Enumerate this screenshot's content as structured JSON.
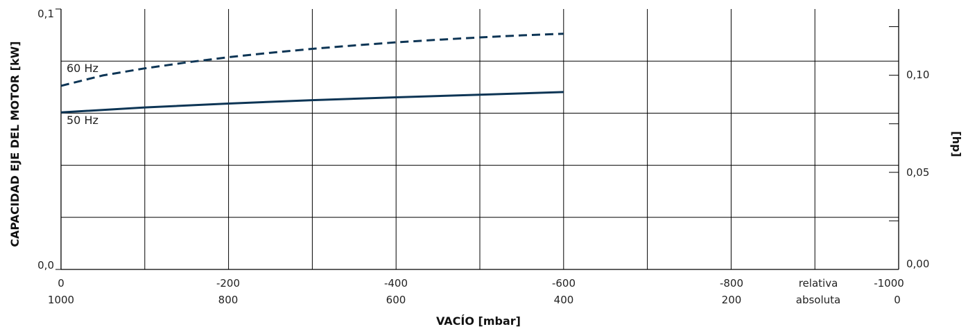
{
  "chart_data": {
    "type": "line",
    "title": "",
    "xlabel": "VACÍO  [mbar]",
    "ylabel": "CAPACIDAD EJE DEL MOTOR  [kW]",
    "y2label": "[hp]",
    "xlim": [
      0,
      -1000
    ],
    "ylim": [
      0,
      0.1
    ],
    "y2lim": [
      0,
      0.1341
    ],
    "x_ticks": [
      0,
      -200,
      -400,
      -600,
      -800,
      -1000
    ],
    "x_tick_labels_relative": [
      "0",
      "-200",
      "-400",
      "-600",
      "-800",
      "-1000"
    ],
    "x_tick_labels_absolute": [
      "1000",
      "800",
      "600",
      "400",
      "200",
      "0"
    ],
    "x_label_relative": "relativa",
    "x_label_absolute": "absoluta",
    "y_tick_labels": [
      "0,0",
      "0,1"
    ],
    "y2_ticks": [
      0,
      0.05,
      0.1
    ],
    "y2_tick_labels": [
      "0,00",
      "0,05",
      "0,10"
    ],
    "grid": true,
    "series": [
      {
        "name": "60 Hz",
        "style": "dashed",
        "color": "#0d3555",
        "x": [
          0,
          -50,
          -100,
          -150,
          -200,
          -250,
          -300,
          -350,
          -400,
          -450,
          -500,
          -550,
          -600
        ],
        "y": [
          0.0705,
          0.0745,
          0.0772,
          0.0795,
          0.0815,
          0.0832,
          0.0847,
          0.086,
          0.0872,
          0.0882,
          0.0891,
          0.0899,
          0.0905
        ]
      },
      {
        "name": "50 Hz",
        "style": "solid",
        "color": "#0d3555",
        "x": [
          0,
          -100,
          -200,
          -300,
          -400,
          -500,
          -600
        ],
        "y": [
          0.0603,
          0.0622,
          0.0637,
          0.065,
          0.0661,
          0.0671,
          0.0681
        ]
      }
    ]
  }
}
